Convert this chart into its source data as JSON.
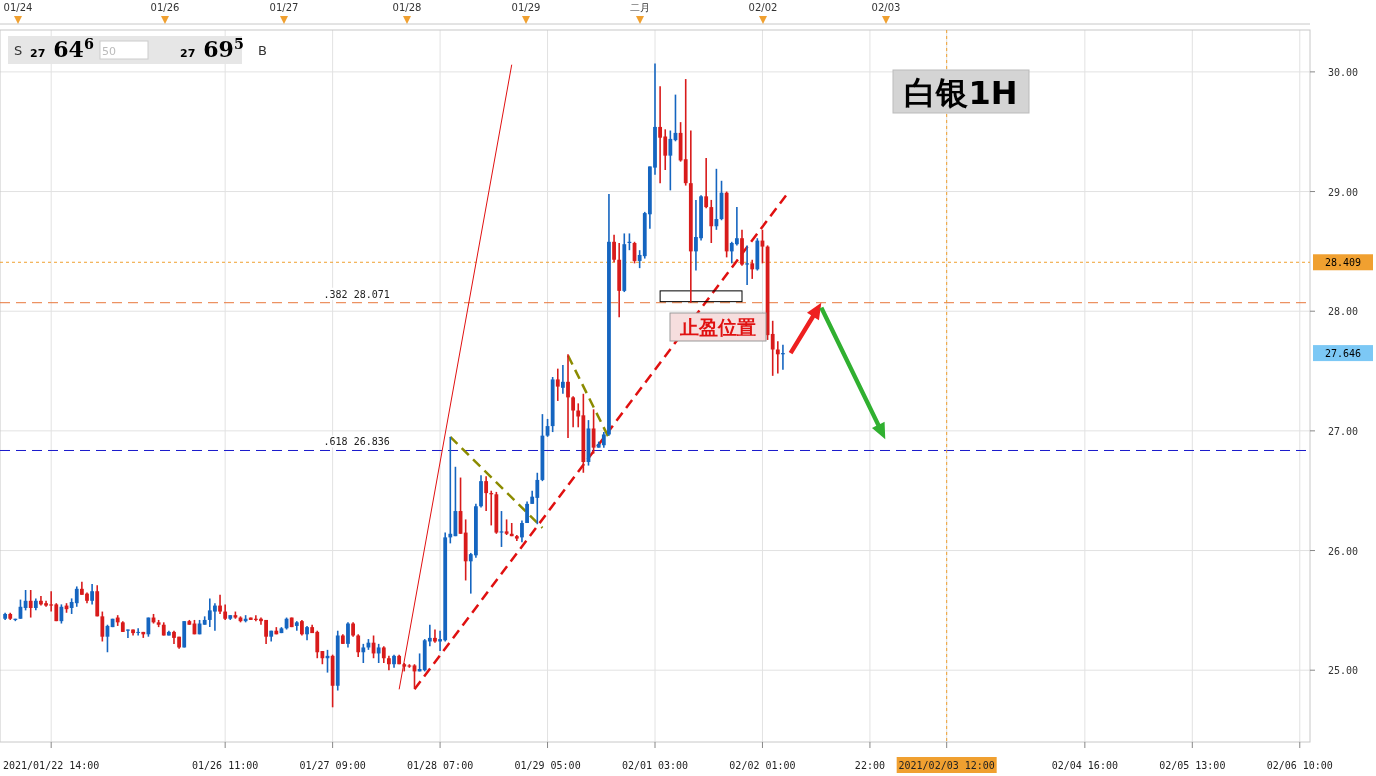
{
  "chart_data": {
    "type": "candlestick",
    "title": "白银1H",
    "categories": [
      null,
      null,
      null,
      null,
      null,
      null,
      null,
      null,
      null,
      "2021/01/22 14:00",
      null,
      null,
      null,
      null,
      null,
      null,
      null,
      null,
      null,
      null,
      null,
      null,
      null,
      null,
      null,
      null,
      null,
      null,
      null,
      null,
      null,
      null,
      null,
      null,
      null,
      null,
      null,
      null,
      null,
      null,
      null,
      null,
      null,
      "01/26 11:00",
      null,
      null,
      null,
      null,
      null,
      null,
      null,
      null,
      null,
      null,
      null,
      null,
      null,
      null,
      null,
      null,
      null,
      null,
      null,
      null,
      "01/27 09:00",
      null,
      null,
      null,
      null,
      null,
      null,
      null,
      null,
      null,
      null,
      null,
      null,
      null,
      null,
      null,
      null,
      null,
      null,
      null,
      null,
      "01/28 07:00",
      null,
      null,
      null,
      null,
      null,
      null,
      null,
      null,
      null,
      null,
      null,
      null,
      null,
      null,
      null,
      null,
      null,
      null,
      null,
      null,
      "01/29 05:00",
      null,
      null,
      null,
      null,
      null,
      null,
      null,
      null,
      null,
      null,
      null,
      null,
      null,
      null,
      null,
      null,
      null,
      null,
      null,
      null,
      "02/01 03:00",
      null,
      null,
      null,
      null,
      null,
      null,
      null,
      null,
      null,
      null,
      null,
      null,
      null,
      null,
      null,
      null,
      null,
      null,
      null,
      null,
      "02/02 01:00",
      null,
      null,
      null,
      null,
      null,
      null,
      null,
      null,
      null,
      null,
      null,
      null,
      null,
      null,
      null,
      null,
      null,
      null,
      null,
      null,
      "22:00",
      null,
      null,
      null,
      null,
      null,
      null,
      null,
      null,
      null,
      null,
      null,
      null,
      null,
      null,
      "2021/02/03 12:00",
      null,
      null,
      null,
      null,
      null,
      null,
      null,
      null,
      null,
      null,
      null,
      null,
      null,
      null,
      null,
      null,
      null,
      null,
      null,
      null,
      null,
      null,
      null,
      null,
      null,
      null,
      "02/04 16:00",
      null,
      null,
      null,
      null,
      null,
      null,
      null,
      null,
      null,
      null,
      null,
      null,
      null,
      null,
      null,
      null,
      null,
      null,
      null,
      null,
      "02/05 13:00",
      null,
      null,
      null,
      null,
      null,
      null,
      null,
      null,
      null,
      null,
      null,
      null,
      null,
      null,
      null,
      null,
      null,
      null,
      null,
      null,
      "02/06 10:00",
      null
    ],
    "ohlc": [
      [
        25.43,
        25.48,
        25.42,
        25.47
      ],
      [
        25.47,
        25.48,
        25.42,
        25.43
      ],
      [
        25.42,
        25.43,
        25.41,
        25.43
      ],
      [
        25.43,
        25.59,
        25.43,
        25.53
      ],
      [
        25.52,
        25.67,
        25.5,
        25.58
      ],
      [
        25.58,
        25.67,
        25.44,
        25.52
      ],
      [
        25.52,
        25.6,
        25.5,
        25.58
      ],
      [
        25.58,
        25.62,
        25.54,
        25.55
      ],
      [
        25.56,
        25.58,
        25.53,
        25.54
      ],
      [
        25.55,
        25.66,
        25.49,
        25.54
      ],
      [
        25.55,
        25.56,
        25.41,
        25.41
      ],
      [
        25.41,
        25.55,
        25.39,
        25.53
      ],
      [
        25.54,
        25.56,
        25.48,
        25.51
      ],
      [
        25.52,
        25.6,
        25.47,
        25.57
      ],
      [
        25.56,
        25.7,
        25.53,
        25.68
      ],
      [
        25.68,
        25.74,
        25.63,
        25.63
      ],
      [
        25.64,
        25.65,
        25.56,
        25.58
      ],
      [
        25.58,
        25.72,
        25.55,
        25.66
      ],
      [
        25.66,
        25.71,
        25.45,
        25.45
      ],
      [
        25.45,
        25.49,
        25.24,
        25.28
      ],
      [
        25.28,
        25.38,
        25.15,
        25.37
      ],
      [
        25.36,
        25.43,
        25.36,
        25.43
      ],
      [
        25.44,
        25.46,
        25.37,
        25.4
      ],
      [
        25.4,
        25.41,
        25.32,
        25.32
      ],
      [
        25.33,
        25.34,
        25.27,
        25.34
      ],
      [
        25.34,
        25.34,
        25.29,
        25.31
      ],
      [
        25.32,
        25.35,
        25.29,
        25.32
      ],
      [
        25.32,
        25.32,
        25.27,
        25.3
      ],
      [
        25.3,
        25.44,
        25.28,
        25.44
      ],
      [
        25.44,
        25.47,
        25.39,
        25.4
      ],
      [
        25.4,
        25.42,
        25.36,
        25.38
      ],
      [
        25.38,
        25.4,
        25.29,
        25.29
      ],
      [
        25.29,
        25.33,
        25.29,
        25.32
      ],
      [
        25.32,
        25.33,
        25.22,
        25.27
      ],
      [
        25.28,
        25.28,
        25.18,
        25.19
      ],
      [
        25.19,
        25.41,
        25.19,
        25.41
      ],
      [
        25.41,
        25.42,
        25.38,
        25.38
      ],
      [
        25.39,
        25.42,
        25.3,
        25.3
      ],
      [
        25.3,
        25.42,
        25.3,
        25.39
      ],
      [
        25.38,
        25.45,
        25.38,
        25.42
      ],
      [
        25.42,
        25.6,
        25.36,
        25.5
      ],
      [
        25.49,
        25.56,
        25.33,
        25.54
      ],
      [
        25.54,
        25.63,
        25.47,
        25.49
      ],
      [
        25.49,
        25.55,
        25.42,
        25.43
      ],
      [
        25.43,
        25.46,
        25.42,
        25.46
      ],
      [
        25.46,
        25.49,
        25.43,
        25.44
      ],
      [
        25.44,
        25.45,
        25.4,
        25.41
      ],
      [
        25.41,
        25.46,
        25.4,
        25.43
      ],
      [
        25.44,
        25.44,
        25.42,
        25.42
      ],
      [
        25.43,
        25.46,
        25.41,
        25.42
      ],
      [
        25.43,
        25.44,
        25.38,
        25.41
      ],
      [
        25.42,
        25.42,
        25.22,
        25.28
      ],
      [
        25.28,
        25.33,
        25.24,
        25.33
      ],
      [
        25.33,
        25.36,
        25.3,
        25.3
      ],
      [
        25.31,
        25.36,
        25.31,
        25.35
      ],
      [
        25.35,
        25.44,
        25.34,
        25.43
      ],
      [
        25.44,
        25.44,
        25.36,
        25.36
      ],
      [
        25.37,
        25.41,
        25.33,
        25.4
      ],
      [
        25.41,
        25.42,
        25.29,
        25.3
      ],
      [
        25.3,
        25.37,
        25.25,
        25.36
      ],
      [
        25.36,
        25.38,
        25.31,
        25.31
      ],
      [
        25.32,
        25.33,
        25.1,
        25.15
      ],
      [
        25.16,
        25.16,
        25.05,
        25.1
      ],
      [
        25.1,
        25.17,
        24.98,
        25.12
      ],
      [
        25.12,
        25.13,
        24.69,
        24.87
      ],
      [
        24.87,
        25.33,
        24.83,
        25.29
      ],
      [
        25.29,
        25.3,
        25.22,
        25.22
      ],
      [
        25.22,
        25.4,
        25.19,
        25.39
      ],
      [
        25.39,
        25.4,
        25.28,
        25.29
      ],
      [
        25.29,
        25.3,
        25.11,
        25.15
      ],
      [
        25.15,
        25.22,
        25.06,
        25.19
      ],
      [
        25.19,
        25.26,
        25.17,
        25.23
      ],
      [
        25.23,
        25.29,
        25.1,
        25.14
      ],
      [
        25.14,
        25.22,
        25.06,
        25.19
      ],
      [
        25.19,
        25.2,
        25.06,
        25.1
      ],
      [
        25.1,
        25.12,
        25.0,
        25.05
      ],
      [
        25.05,
        25.13,
        25.02,
        25.12
      ],
      [
        25.12,
        25.13,
        25.05,
        25.05
      ],
      [
        25.05,
        25.06,
        24.99,
        25.03
      ],
      [
        25.04,
        25.05,
        25.02,
        25.03
      ],
      [
        25.04,
        25.05,
        24.85,
        24.99
      ],
      [
        24.99,
        25.14,
        24.99,
        25.01
      ],
      [
        25.0,
        25.26,
        24.99,
        25.25
      ],
      [
        25.24,
        25.38,
        25.2,
        25.27
      ],
      [
        25.27,
        25.34,
        25.23,
        25.24
      ],
      [
        25.24,
        25.33,
        25.16,
        25.26
      ],
      [
        25.25,
        26.15,
        25.24,
        26.11
      ],
      [
        26.11,
        26.95,
        26.06,
        26.14
      ],
      [
        26.12,
        26.7,
        26.12,
        26.33
      ],
      [
        26.33,
        26.61,
        26.14,
        26.14
      ],
      [
        26.15,
        26.26,
        25.75,
        25.91
      ],
      [
        25.91,
        25.98,
        25.64,
        25.97
      ],
      [
        25.96,
        26.39,
        25.94,
        26.37
      ],
      [
        26.37,
        26.63,
        26.36,
        26.58
      ],
      [
        26.58,
        26.62,
        26.33,
        26.48
      ],
      [
        26.48,
        26.5,
        26.21,
        26.47
      ],
      [
        26.47,
        26.49,
        26.14,
        26.15
      ],
      [
        26.15,
        26.33,
        26.03,
        26.16
      ],
      [
        26.16,
        26.26,
        26.13,
        26.14
      ],
      [
        26.14,
        26.23,
        26.12,
        26.12
      ],
      [
        26.12,
        26.13,
        26.08,
        26.1
      ],
      [
        26.11,
        26.25,
        26.07,
        26.23
      ],
      [
        26.23,
        26.41,
        26.23,
        26.39
      ],
      [
        26.39,
        26.5,
        26.39,
        26.45
      ],
      [
        26.44,
        26.65,
        26.22,
        26.59
      ],
      [
        26.59,
        27.14,
        26.58,
        26.96
      ],
      [
        26.96,
        27.1,
        26.95,
        27.04
      ],
      [
        27.04,
        27.45,
        26.99,
        27.43
      ],
      [
        27.43,
        27.52,
        27.25,
        27.37
      ],
      [
        27.36,
        27.55,
        27.31,
        27.41
      ],
      [
        27.41,
        27.64,
        26.94,
        27.28
      ],
      [
        27.28,
        27.29,
        27.03,
        27.17
      ],
      [
        27.17,
        27.23,
        27.03,
        27.12
      ],
      [
        27.13,
        27.31,
        26.65,
        26.74
      ],
      [
        26.74,
        27.09,
        26.71,
        27.02
      ],
      [
        27.02,
        27.18,
        26.81,
        26.86
      ],
      [
        26.86,
        26.91,
        26.86,
        26.89
      ],
      [
        26.88,
        26.99,
        26.86,
        26.97
      ],
      [
        26.97,
        28.98,
        26.96,
        28.58
      ],
      [
        28.58,
        28.64,
        28.41,
        28.43
      ],
      [
        28.43,
        28.57,
        27.95,
        28.17
      ],
      [
        28.17,
        28.65,
        28.16,
        28.56
      ],
      [
        28.57,
        28.65,
        28.51,
        28.58
      ],
      [
        28.57,
        28.58,
        28.4,
        28.42
      ],
      [
        28.42,
        28.51,
        28.36,
        28.47
      ],
      [
        28.46,
        28.83,
        28.44,
        28.82
      ],
      [
        28.81,
        29.21,
        28.69,
        29.21
      ],
      [
        29.2,
        30.07,
        29.14,
        29.54
      ],
      [
        29.54,
        29.88,
        29.07,
        29.45
      ],
      [
        29.46,
        29.52,
        29.18,
        29.3
      ],
      [
        29.3,
        29.51,
        29.01,
        29.44
      ],
      [
        29.43,
        29.81,
        29.42,
        29.49
      ],
      [
        29.49,
        29.58,
        29.25,
        29.26
      ],
      [
        29.27,
        29.94,
        29.05,
        29.07
      ],
      [
        29.07,
        29.51,
        28.07,
        28.5
      ],
      [
        28.5,
        28.93,
        28.34,
        28.62
      ],
      [
        28.61,
        28.97,
        28.59,
        28.96
      ],
      [
        28.96,
        29.28,
        28.86,
        28.87
      ],
      [
        28.87,
        28.93,
        28.57,
        28.71
      ],
      [
        28.71,
        29.19,
        28.68,
        28.77
      ],
      [
        28.77,
        29.09,
        28.76,
        28.99
      ],
      [
        28.99,
        29.0,
        28.45,
        28.5
      ],
      [
        28.5,
        28.58,
        28.4,
        28.57
      ],
      [
        28.56,
        28.87,
        28.55,
        28.61
      ],
      [
        28.61,
        28.68,
        28.38,
        28.39
      ],
      [
        28.39,
        28.55,
        28.22,
        28.4
      ],
      [
        28.4,
        28.43,
        28.27,
        28.35
      ],
      [
        28.35,
        28.61,
        28.34,
        28.59
      ],
      [
        28.59,
        28.68,
        28.4,
        28.54
      ],
      [
        28.54,
        28.55,
        27.76,
        27.8
      ],
      [
        27.81,
        27.92,
        27.46,
        27.68
      ],
      [
        27.68,
        27.75,
        27.48,
        27.64
      ],
      [
        27.64,
        27.72,
        27.51,
        27.65
      ],
      null,
      null,
      null,
      null,
      null,
      null,
      null,
      null,
      null,
      null,
      null,
      null,
      null,
      null,
      null,
      null,
      null,
      null,
      null,
      null,
      null,
      null,
      null,
      null,
      null,
      null,
      null,
      null,
      null,
      null,
      null,
      null,
      null,
      null,
      null,
      null,
      null,
      null,
      null,
      null,
      null,
      null,
      null,
      null,
      null,
      null,
      null,
      null,
      null,
      null,
      null,
      null,
      null,
      null,
      null,
      null,
      null,
      null,
      null,
      null,
      null,
      null,
      null,
      null,
      null,
      null,
      null,
      null,
      null,
      null,
      null,
      null,
      null,
      null,
      null,
      null,
      null,
      null,
      null,
      null,
      null,
      null,
      null,
      null,
      null,
      null,
      null,
      null,
      null,
      null,
      null,
      null,
      null,
      null,
      null,
      null,
      null,
      null,
      null,
      null,
      null,
      null
    ],
    "series": [
      {
        "type": "line",
        "color": "#e01010",
        "line_style": "solid",
        "values": [
          null,
          null,
          null,
          null,
          null,
          null,
          null,
          null,
          null,
          null,
          null,
          null,
          null,
          null,
          null,
          null,
          null,
          null,
          null,
          null,
          null,
          null,
          null,
          null,
          null,
          null,
          null,
          null,
          null,
          null,
          null,
          null,
          null,
          null,
          null,
          null,
          null,
          null,
          null,
          null,
          null,
          null,
          null,
          null,
          null,
          null,
          null,
          null,
          null,
          null,
          null,
          null,
          null,
          null,
          null,
          null,
          null,
          null,
          null,
          null,
          null,
          null,
          null,
          null,
          null,
          null,
          null,
          null,
          null,
          null,
          null,
          null,
          null,
          null,
          null,
          null,
          null,
          24.84,
          null,
          null,
          null,
          null,
          null,
          null,
          null,
          null,
          null,
          null,
          null,
          null,
          null,
          null,
          null,
          null,
          null,
          null,
          null,
          null,
          null,
          30.06,
          null,
          null,
          null,
          null,
          null,
          null,
          null,
          null,
          null,
          null,
          null,
          null,
          null,
          null,
          null,
          null,
          null,
          null,
          null,
          null,
          null,
          null,
          null,
          null,
          null,
          null,
          null,
          null,
          null,
          null,
          null,
          null,
          null,
          null,
          null,
          null,
          null,
          null,
          null,
          null,
          null,
          null,
          null,
          null,
          null,
          null,
          null,
          null,
          null,
          null,
          null,
          null,
          null,
          null,
          null,
          null,
          null,
          null,
          null,
          null,
          null,
          null,
          null,
          null,
          null,
          null,
          null,
          null,
          null,
          null,
          null,
          null,
          null,
          null,
          null,
          null,
          null,
          null,
          null,
          null,
          null,
          null,
          null,
          null,
          null,
          null,
          null,
          null,
          null,
          null,
          null,
          null,
          null,
          null,
          null,
          null,
          null,
          null,
          null,
          null,
          null,
          null,
          null,
          null,
          null,
          null,
          null,
          null,
          null,
          null,
          null,
          null,
          null,
          null,
          null,
          null,
          null,
          null,
          null,
          null,
          null,
          null,
          null,
          null,
          null,
          null,
          null,
          null,
          null,
          null,
          null,
          null,
          null,
          null,
          null,
          null,
          null,
          null,
          null,
          null,
          null,
          null,
          null,
          null,
          null,
          null,
          null,
          null,
          null,
          null,
          null,
          null,
          null,
          null,
          null
        ]
      },
      {
        "type": "line",
        "color": "#e01010",
        "line_style": "dashed",
        "values": [
          null,
          null,
          null,
          null,
          null,
          null,
          null,
          null,
          null,
          null,
          null,
          null,
          null,
          null,
          null,
          null,
          null,
          null,
          null,
          null,
          null,
          null,
          null,
          null,
          null,
          null,
          null,
          null,
          null,
          null,
          null,
          null,
          null,
          null,
          null,
          null,
          null,
          null,
          null,
          null,
          null,
          null,
          null,
          null,
          null,
          null,
          null,
          null,
          null,
          null,
          null,
          null,
          null,
          null,
          null,
          null,
          null,
          null,
          null,
          null,
          null,
          null,
          null,
          null,
          null,
          null,
          null,
          null,
          null,
          null,
          null,
          null,
          null,
          null,
          null,
          null,
          null,
          null,
          null,
          null,
          24.84,
          null,
          null,
          null,
          null,
          null,
          null,
          null,
          null,
          null,
          null,
          null,
          null,
          null,
          null,
          null,
          null,
          null,
          null,
          null,
          null,
          null,
          null,
          null,
          null,
          null,
          null,
          null,
          null,
          null,
          null,
          null,
          null,
          null,
          null,
          null,
          null,
          null,
          null,
          null,
          null,
          null,
          null,
          null,
          null,
          null,
          null,
          null,
          null,
          null,
          null,
          null,
          null,
          null,
          null,
          null,
          null,
          null,
          null,
          null,
          null,
          null,
          null,
          null,
          null,
          null,
          null,
          null,
          null,
          null,
          null,
          null,
          null,
          28.99,
          null,
          null,
          null,
          null,
          null,
          null,
          null,
          null,
          null,
          null,
          null,
          null,
          null,
          null,
          null,
          null,
          null,
          null,
          null,
          null,
          null,
          null,
          null,
          null,
          null,
          null,
          null,
          null,
          null,
          null,
          null,
          null,
          null,
          null,
          null,
          null,
          null,
          null,
          null,
          null,
          null,
          null,
          null,
          null,
          null,
          null,
          null,
          null,
          null,
          null,
          null,
          null,
          null,
          null,
          null,
          null,
          null,
          null,
          null,
          null,
          null,
          null,
          null,
          null,
          null,
          null,
          null,
          null,
          null,
          null,
          null,
          null,
          null,
          null,
          null,
          null,
          null,
          null,
          null,
          null,
          null,
          null,
          null,
          null,
          null,
          null,
          null,
          null,
          null,
          null,
          null,
          null,
          null,
          null,
          null,
          null,
          null,
          null,
          null,
          null,
          null
        ]
      },
      {
        "type": "line",
        "color": "#8b8b00",
        "line_style": "dashed",
        "values": [
          null,
          null,
          null,
          null,
          null,
          null,
          null,
          null,
          null,
          null,
          null,
          null,
          null,
          null,
          null,
          null,
          null,
          null,
          null,
          null,
          null,
          null,
          null,
          null,
          null,
          null,
          null,
          null,
          null,
          null,
          null,
          null,
          null,
          null,
          null,
          null,
          null,
          null,
          null,
          null,
          null,
          null,
          null,
          null,
          null,
          null,
          null,
          null,
          null,
          null,
          null,
          null,
          null,
          null,
          null,
          null,
          null,
          null,
          null,
          null,
          null,
          null,
          null,
          null,
          null,
          null,
          null,
          null,
          null,
          null,
          null,
          null,
          null,
          null,
          null,
          null,
          null,
          null,
          null,
          null,
          null,
          null,
          null,
          null,
          null,
          null,
          null,
          26.95,
          null,
          null,
          null,
          null,
          null,
          null,
          null,
          null,
          null,
          null,
          null,
          null,
          null,
          null,
          null,
          null,
          null,
          26.19,
          null,
          null,
          null,
          null,
          null,
          null,
          null,
          null,
          null,
          null,
          null,
          null,
          null,
          null,
          null,
          null,
          null,
          null,
          null,
          null,
          null,
          null,
          null,
          null,
          null,
          null,
          null,
          null,
          null,
          null,
          null,
          null,
          null,
          null,
          null,
          null,
          null,
          null,
          null,
          null,
          null,
          null,
          null,
          null,
          null,
          null,
          null,
          null,
          null,
          null,
          null,
          null,
          null,
          null,
          null,
          null,
          null,
          null,
          null,
          null,
          null,
          null,
          null,
          null,
          null,
          null,
          null,
          null,
          null,
          null,
          null,
          null,
          null,
          null,
          null,
          null,
          null,
          null,
          null,
          null,
          null,
          null,
          null,
          null,
          null,
          null,
          null,
          null,
          null,
          null,
          null,
          null,
          null,
          null,
          null,
          null,
          null,
          null,
          null,
          null,
          null,
          null,
          null,
          null,
          null,
          null,
          null,
          null,
          null,
          null,
          null,
          null,
          null,
          null,
          null,
          null,
          null,
          null,
          null,
          null,
          null,
          null,
          null,
          null,
          null,
          null,
          null,
          null,
          null,
          null,
          null,
          null,
          null,
          null,
          null,
          null,
          null,
          null,
          null,
          null,
          null,
          null,
          null,
          null,
          null,
          null,
          null,
          null,
          null
        ]
      },
      {
        "type": "line",
        "color": "#8b8b00",
        "line_style": "dashed",
        "values": [
          null,
          null,
          null,
          null,
          null,
          null,
          null,
          null,
          null,
          null,
          null,
          null,
          null,
          null,
          null,
          null,
          null,
          null,
          null,
          null,
          null,
          null,
          null,
          null,
          null,
          null,
          null,
          null,
          null,
          null,
          null,
          null,
          null,
          null,
          null,
          null,
          null,
          null,
          null,
          null,
          null,
          null,
          null,
          null,
          null,
          null,
          null,
          null,
          null,
          null,
          null,
          null,
          null,
          null,
          null,
          null,
          null,
          null,
          null,
          null,
          null,
          null,
          null,
          null,
          null,
          null,
          null,
          null,
          null,
          null,
          null,
          null,
          null,
          null,
          null,
          null,
          null,
          null,
          null,
          null,
          null,
          null,
          null,
          null,
          null,
          null,
          null,
          null,
          null,
          null,
          null,
          null,
          null,
          null,
          null,
          null,
          null,
          null,
          null,
          null,
          null,
          null,
          null,
          null,
          null,
          null,
          null,
          null,
          null,
          null,
          27.63,
          null,
          null,
          null,
          null,
          null,
          null,
          null,
          26.94,
          null,
          null,
          null,
          null,
          null,
          null,
          null,
          null,
          null,
          null,
          null,
          null,
          null,
          null,
          null,
          null,
          null,
          null,
          null,
          null,
          null,
          null,
          null,
          null,
          null,
          null,
          null,
          null,
          null,
          null,
          null,
          null,
          null,
          null,
          null,
          null,
          null,
          null,
          null,
          null,
          null,
          null,
          null,
          null,
          null,
          null,
          null,
          null,
          null,
          null,
          null,
          null,
          null,
          null,
          null,
          null,
          null,
          null,
          null,
          null,
          null,
          null,
          null,
          null,
          null,
          null,
          null,
          null,
          null,
          null,
          null,
          null,
          null,
          null,
          null,
          null,
          null,
          null,
          null,
          null,
          null,
          null,
          null,
          null,
          null,
          null,
          null,
          null,
          null,
          null,
          null,
          null,
          null,
          null,
          null,
          null,
          null,
          null,
          null,
          null,
          null,
          null,
          null,
          null,
          null,
          null,
          null,
          null,
          null,
          null,
          null,
          null,
          null,
          null,
          null,
          null,
          null,
          null,
          null,
          null,
          null,
          null,
          null,
          null,
          null,
          null,
          null,
          null,
          null,
          null,
          null,
          null,
          null,
          null,
          null,
          null
        ]
      }
    ],
    "ylim": [
      24.4,
      30.35
    ],
    "yticks": [
      {
        "value": 25,
        "label": "25.00"
      },
      {
        "value": 26,
        "label": "26.00"
      },
      {
        "value": 27,
        "label": "27.00"
      },
      {
        "value": 28,
        "label": "28.00"
      },
      {
        "value": 29,
        "label": "29.00"
      },
      {
        "value": 30,
        "label": "30.00"
      }
    ],
    "grid": true,
    "ref_lines": [
      {
        "axis": "y",
        "value": 28.071,
        "label": ".382 28.071",
        "color": "#e8763a",
        "line_style": "dashed"
      },
      {
        "axis": "y",
        "value": 26.836,
        "label": ".618 26.836",
        "color": "#1a1acc",
        "line_style": "dashed"
      },
      {
        "axis": "y",
        "value": 28.409,
        "label": "28.409",
        "color": "#f0a030",
        "line_style": "dotted"
      },
      {
        "axis": "x",
        "value": "2021/02/03 12:00",
        "color": "#f0a030",
        "line_style": "dotted"
      }
    ],
    "annotations": [
      "止盈位置",
      "27.646",
      "S",
      "27 64$^{6}$",
      "50",
      "27 69$^{5}$",
      "B",
      "01/24",
      "01/26",
      "01/27",
      "01/28",
      "01/29",
      "二月",
      "02/02",
      "02/03"
    ]
  }
}
